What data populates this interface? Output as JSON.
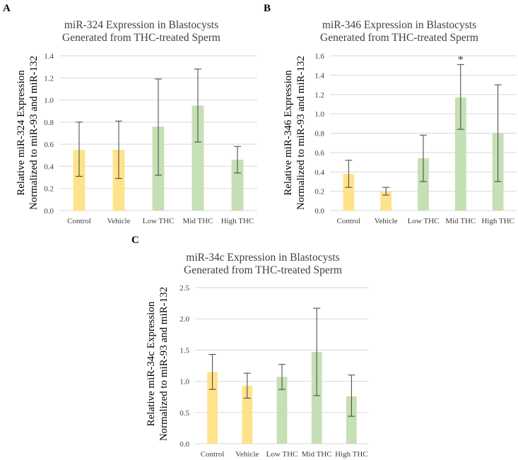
{
  "colors": {
    "yellow": "#FFE38A",
    "green": "#C5E0B4",
    "grid": "#D9D9D9",
    "error_bar": "#404040",
    "text": "#404040"
  },
  "chart_data": [
    {
      "panel": "A",
      "type": "bar",
      "title": [
        "miR-324 Expression in Blastocysts",
        "Generated from THC-treated Sperm"
      ],
      "ylabel": [
        "Relative miR-324 Expression",
        "Normalized to miR-93 and miR-132"
      ],
      "xlabel": "",
      "categories": [
        "Control",
        "Vehicle",
        "Low THC",
        "Mid THC",
        "High THC"
      ],
      "values": [
        0.55,
        0.55,
        0.76,
        0.95,
        0.46
      ],
      "error_low": [
        0.31,
        0.29,
        0.32,
        0.62,
        0.34
      ],
      "error_high": [
        0.8,
        0.81,
        1.19,
        1.28,
        0.58
      ],
      "bar_colors": [
        "yellow",
        "yellow",
        "green",
        "green",
        "green"
      ],
      "ylim": [
        0,
        1.4
      ],
      "yticks": [
        "0.0",
        "0.2",
        "0.4",
        "0.6",
        "0.8",
        "1.0",
        "1.2",
        "1.4"
      ],
      "grid": true,
      "annotations": []
    },
    {
      "panel": "B",
      "type": "bar",
      "title": [
        "miR-346 Expression in Blastocysts",
        "Generated from THC-treated Sperm"
      ],
      "ylabel": [
        "Relative miR-346 Expression",
        "Normalized to miR-93 and miR-132"
      ],
      "xlabel": "",
      "categories": [
        "Control",
        "Vehicle",
        "Low THC",
        "Mid THC",
        "High THC"
      ],
      "values": [
        0.38,
        0.2,
        0.54,
        1.17,
        0.8
      ],
      "error_low": [
        0.24,
        0.16,
        0.3,
        0.84,
        0.3
      ],
      "error_high": [
        0.52,
        0.24,
        0.78,
        1.51,
        1.3
      ],
      "bar_colors": [
        "yellow",
        "yellow",
        "green",
        "green",
        "green"
      ],
      "ylim": [
        0,
        1.6
      ],
      "yticks": [
        "0.0",
        "0.2",
        "0.4",
        "0.6",
        "0.8",
        "1.0",
        "1.2",
        "1.4",
        "1.6"
      ],
      "grid": true,
      "annotations": [
        {
          "category": "Mid THC",
          "text": "*"
        }
      ]
    },
    {
      "panel": "C",
      "type": "bar",
      "title": [
        "miR-34c Expression in Blastocysts",
        "Generated from THC-treated Sperm"
      ],
      "ylabel": [
        "Relative miR-34c Expression",
        "Normalized to miR-93 and miR-132"
      ],
      "xlabel": "",
      "categories": [
        "Control",
        "Vehicle",
        "Low THC",
        "Mid THC",
        "High THC"
      ],
      "values": [
        1.15,
        0.93,
        1.07,
        1.47,
        0.76
      ],
      "error_low": [
        0.87,
        0.73,
        0.87,
        0.77,
        0.44
      ],
      "error_high": [
        1.43,
        1.13,
        1.27,
        2.17,
        1.1
      ],
      "bar_colors": [
        "yellow",
        "yellow",
        "green",
        "green",
        "green"
      ],
      "ylim": [
        0,
        2.5
      ],
      "yticks": [
        "0.0",
        "0.5",
        "1.0",
        "1.5",
        "2.0",
        "2.5"
      ],
      "grid": true,
      "annotations": []
    }
  ]
}
